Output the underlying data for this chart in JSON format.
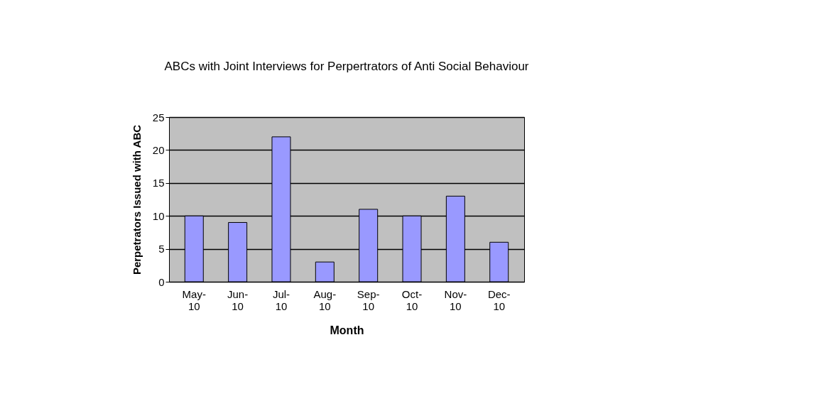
{
  "chart_data": {
    "type": "bar",
    "title": "ABCs with Joint Interviews for Perpertrators of Anti Social Behaviour",
    "xlabel": "Month",
    "ylabel": "Perpetrators Issued with ABC",
    "categories": [
      "May-10",
      "Jun-10",
      "Jul-10",
      "Aug-10",
      "Sep-10",
      "Oct-10",
      "Nov-10",
      "Dec-10"
    ],
    "values": [
      10,
      9,
      22,
      3,
      11,
      10,
      13,
      6
    ],
    "color": "#9999ff",
    "ylim": [
      0,
      25
    ],
    "yticks": [
      0,
      5,
      10,
      15,
      20,
      25
    ],
    "grid": "y"
  }
}
